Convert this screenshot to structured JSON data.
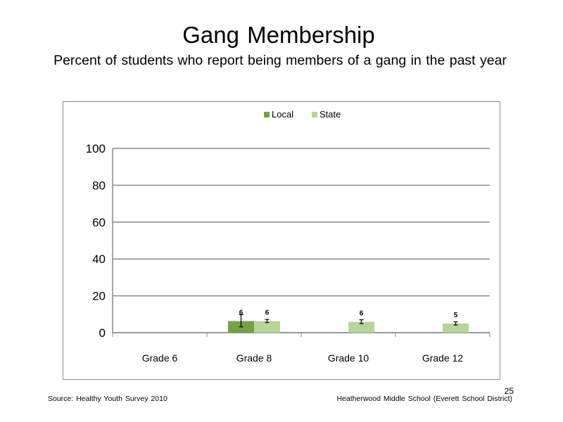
{
  "slide": {
    "title": "Gang Membership",
    "subtitle": "Percent of students who report being members of a gang in the past year",
    "source": "Source: Healthy Youth Survey 2010",
    "school": "Heatherwood Middle  School (Everett School District)",
    "page_number": "25"
  },
  "chart_data": {
    "type": "bar",
    "categories": [
      "Grade 6",
      "Grade 8",
      "Grade 10",
      "Grade 12"
    ],
    "series": [
      {
        "name": "Local",
        "color": "#77a045",
        "values": [
          null,
          6.3,
          null,
          null
        ],
        "labels": [
          null,
          "6",
          null,
          null
        ],
        "error": [
          null,
          [
            3.2,
            9.8
          ],
          null,
          null
        ]
      },
      {
        "name": "State",
        "color": "#b8d49a",
        "values": [
          null,
          6.3,
          5.9,
          5.0
        ],
        "labels": [
          null,
          "6",
          "6",
          "5"
        ],
        "error": [
          null,
          [
            5.5,
            7.2
          ],
          [
            4.9,
            7.0
          ],
          [
            4.2,
            5.9
          ]
        ]
      }
    ],
    "ylim": [
      0,
      100
    ],
    "yticks": [
      0,
      20,
      40,
      60,
      80,
      100
    ],
    "xlabel": "",
    "ylabel": "",
    "grid": true,
    "legend_position": "top"
  }
}
